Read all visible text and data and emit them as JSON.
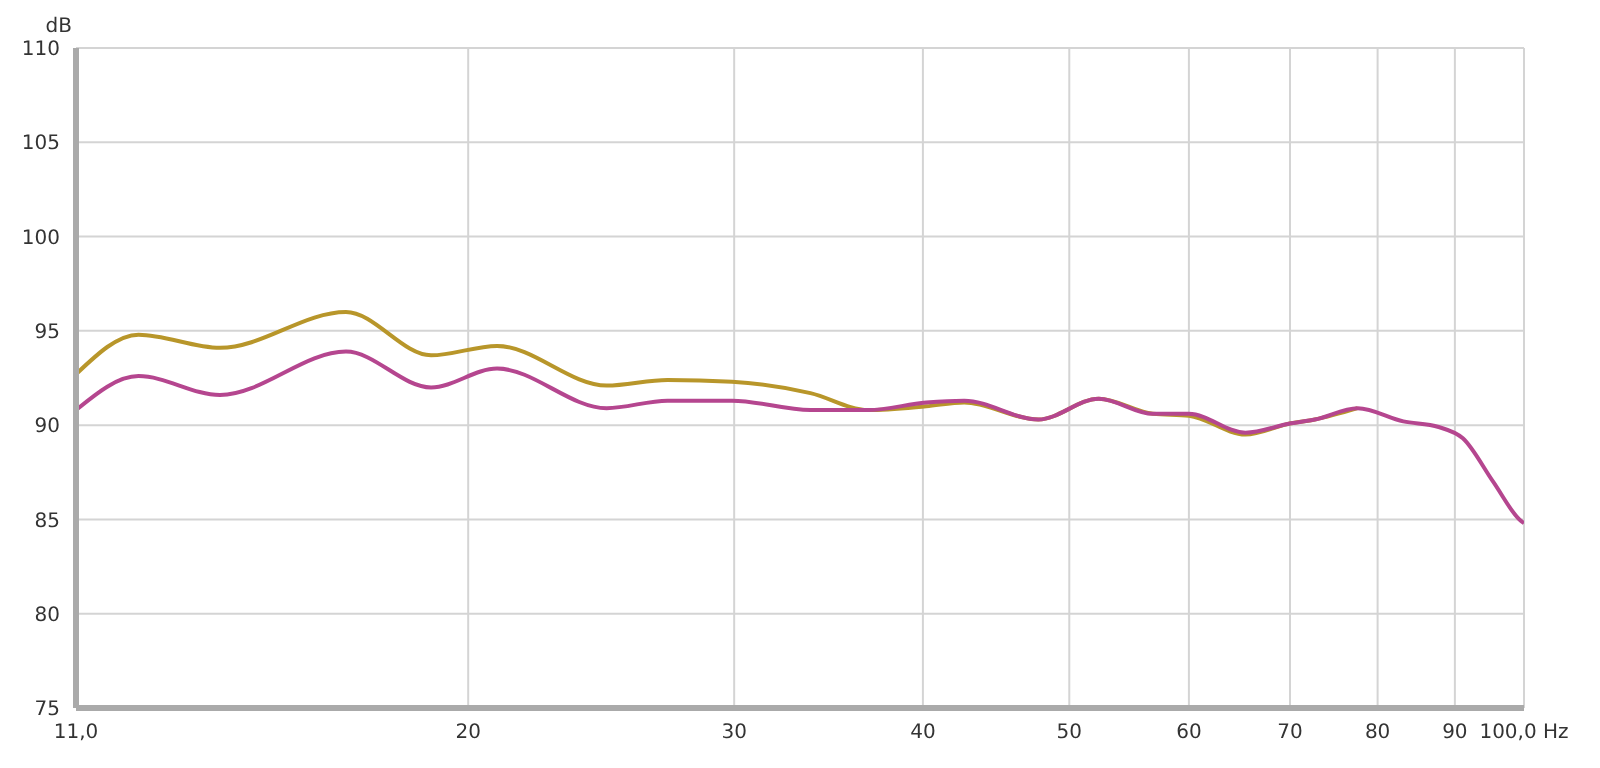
{
  "chart_data": {
    "type": "line",
    "ylabel": "dB",
    "log": "x",
    "x": [
      11,
      12.1,
      13.7,
      16.6,
      18.9,
      20.9,
      24.7,
      27.1,
      29.9,
      33.7,
      36.8,
      40.2,
      42.6,
      47.7,
      52.3,
      56.8,
      60,
      65.4,
      70.1,
      72.7,
      77.6,
      83.2,
      87.8,
      91.1,
      95.4,
      99.3,
      100
    ],
    "series": [
      {
        "color": "#b8962a",
        "values": [
          92.7,
          94.8,
          94.1,
          96.0,
          93.7,
          94.2,
          92.1,
          92.4,
          92.3,
          91.7,
          90.8,
          91.0,
          91.2,
          90.3,
          91.4,
          90.6,
          90.5,
          89.5,
          90.1,
          90.3,
          90.9,
          null,
          null,
          null,
          null,
          null,
          null
        ]
      },
      {
        "color": "#b5468f",
        "values": [
          90.8,
          92.6,
          91.6,
          93.9,
          92.0,
          93.0,
          90.9,
          91.3,
          91.3,
          90.8,
          90.8,
          91.2,
          91.3,
          90.3,
          91.4,
          90.6,
          90.6,
          89.6,
          90.1,
          90.3,
          90.9,
          90.2,
          89.9,
          89.3,
          87.0,
          85.0,
          84.8
        ]
      }
    ],
    "xlim": [
      11,
      100
    ],
    "xticks": [
      {
        "value": 11,
        "label": "11,0"
      },
      20,
      30,
      40,
      50,
      60,
      70,
      80,
      90,
      {
        "value": 100,
        "label": "100,0 Hz"
      }
    ],
    "ylim": [
      75,
      110
    ],
    "yticks": [
      75,
      80,
      85,
      90,
      95,
      100,
      105,
      110
    ],
    "grid": true
  }
}
